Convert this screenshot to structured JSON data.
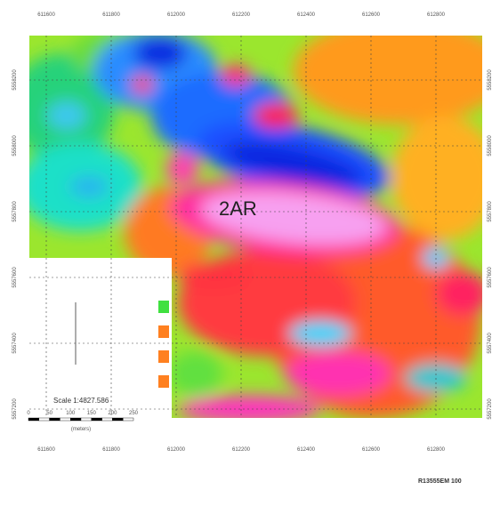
{
  "map": {
    "label": "2AR",
    "x_ticks": [
      "611600",
      "611800",
      "612000",
      "612200",
      "612400",
      "612600",
      "612800"
    ],
    "y_ticks": [
      "5558200",
      "5558000",
      "5557800",
      "5557600",
      "5557400",
      "5557200"
    ],
    "scale": "Scale 1:4827.586",
    "scale_bar_ticks": [
      "0",
      "50",
      "100",
      "150",
      "200",
      "250"
    ],
    "scale_unit": "(meters)"
  },
  "footer": "R13555EM 100"
}
